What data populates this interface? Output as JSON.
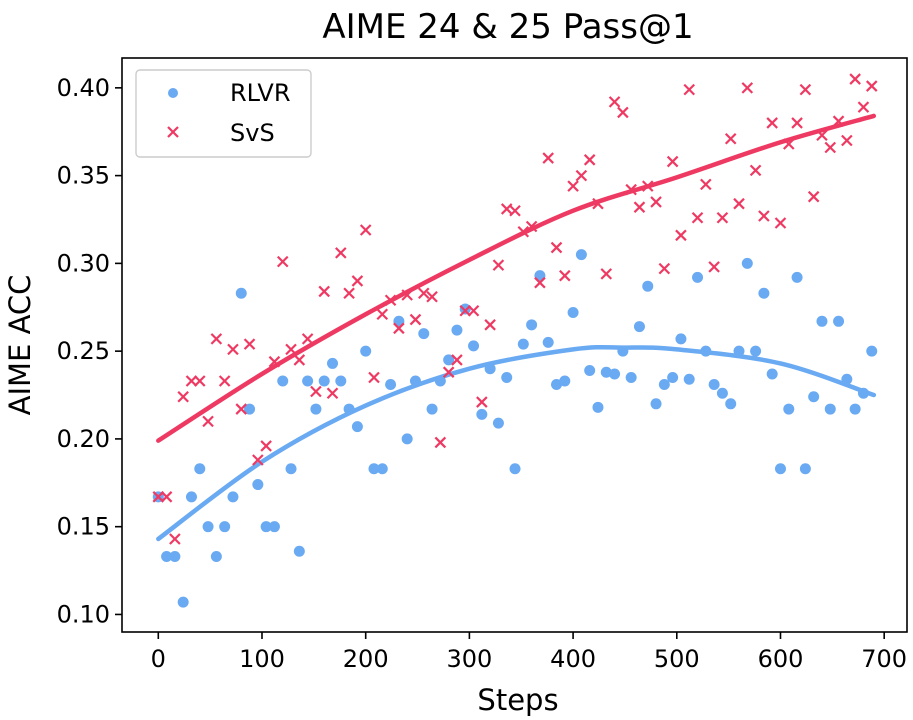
{
  "chart_data": {
    "type": "scatter",
    "title": "AIME 24 & 25 Pass@1",
    "xlabel": "Steps",
    "ylabel": "AIME ACC",
    "xlim": [
      -35,
      722
    ],
    "ylim": [
      0.09,
      0.417
    ],
    "xticks": [
      0,
      100,
      200,
      300,
      400,
      500,
      600,
      700
    ],
    "yticks": [
      0.1,
      0.15,
      0.2,
      0.25,
      0.3,
      0.35,
      0.4
    ],
    "xtick_labels": [
      "0",
      "100",
      "200",
      "300",
      "400",
      "500",
      "600",
      "700"
    ],
    "ytick_labels": [
      "0.10",
      "0.15",
      "0.20",
      "0.25",
      "0.30",
      "0.35",
      "0.40"
    ],
    "grid": false,
    "legend_position": "top-left",
    "series": [
      {
        "name": "RLVR",
        "marker": "circle",
        "color": "#6aaaf2",
        "x": [
          0,
          8,
          16,
          24,
          32,
          40,
          48,
          56,
          64,
          72,
          80,
          88,
          96,
          104,
          112,
          120,
          128,
          136,
          144,
          152,
          160,
          168,
          176,
          184,
          192,
          200,
          208,
          216,
          224,
          232,
          240,
          248,
          256,
          264,
          272,
          280,
          288,
          296,
          304,
          312,
          320,
          328,
          336,
          344,
          352,
          360,
          368,
          376,
          384,
          392,
          400,
          408,
          416,
          424,
          432,
          440,
          448,
          456,
          464,
          472,
          480,
          488,
          496,
          504,
          512,
          520,
          528,
          536,
          544,
          552,
          560,
          568,
          576,
          584,
          592,
          600,
          608,
          616,
          624,
          632,
          640,
          648,
          656,
          664,
          672,
          680,
          688
        ],
        "y": [
          0.167,
          0.133,
          0.133,
          0.107,
          0.167,
          0.183,
          0.15,
          0.133,
          0.15,
          0.167,
          0.283,
          0.217,
          0.174,
          0.15,
          0.15,
          0.233,
          0.183,
          0.136,
          0.233,
          0.217,
          0.233,
          0.243,
          0.233,
          0.217,
          0.207,
          0.25,
          0.183,
          0.183,
          0.231,
          0.267,
          0.2,
          0.233,
          0.26,
          0.217,
          0.233,
          0.245,
          0.262,
          0.274,
          0.253,
          0.214,
          0.24,
          0.209,
          0.235,
          0.183,
          0.254,
          0.265,
          0.293,
          0.255,
          0.231,
          0.233,
          0.272,
          0.305,
          0.239,
          0.218,
          0.238,
          0.237,
          0.25,
          0.235,
          0.264,
          0.287,
          0.22,
          0.231,
          0.235,
          0.257,
          0.234,
          0.292,
          0.25,
          0.231,
          0.226,
          0.22,
          0.25,
          0.3,
          0.25,
          0.283,
          0.237,
          0.183,
          0.217,
          0.292,
          0.183,
          0.224,
          0.267,
          0.217,
          0.267,
          0.234,
          0.217,
          0.226,
          0.25
        ]
      },
      {
        "name": "SvS",
        "marker": "x",
        "color": "#ee3a63",
        "x": [
          0,
          8,
          16,
          24,
          32,
          40,
          48,
          56,
          64,
          72,
          80,
          88,
          96,
          104,
          112,
          120,
          128,
          136,
          144,
          152,
          160,
          168,
          176,
          184,
          192,
          200,
          208,
          216,
          224,
          232,
          240,
          248,
          256,
          264,
          272,
          280,
          288,
          296,
          304,
          312,
          320,
          328,
          336,
          344,
          352,
          360,
          368,
          376,
          384,
          392,
          400,
          408,
          416,
          424,
          432,
          440,
          448,
          456,
          464,
          472,
          480,
          488,
          496,
          504,
          512,
          520,
          528,
          536,
          544,
          552,
          560,
          568,
          576,
          584,
          592,
          600,
          608,
          616,
          624,
          632,
          640,
          648,
          656,
          664,
          672,
          680,
          688
        ],
        "y": [
          0.167,
          0.167,
          0.143,
          0.224,
          0.233,
          0.233,
          0.21,
          0.257,
          0.233,
          0.251,
          0.217,
          0.254,
          0.188,
          0.196,
          0.244,
          0.301,
          0.251,
          0.245,
          0.257,
          0.227,
          0.284,
          0.226,
          0.306,
          0.283,
          0.29,
          0.319,
          0.235,
          0.271,
          0.279,
          0.263,
          0.282,
          0.268,
          0.283,
          0.281,
          0.198,
          0.238,
          0.245,
          0.273,
          0.273,
          0.221,
          0.265,
          0.299,
          0.331,
          0.33,
          0.318,
          0.321,
          0.289,
          0.36,
          0.309,
          0.293,
          0.344,
          0.35,
          0.359,
          0.334,
          0.294,
          0.392,
          0.386,
          0.342,
          0.332,
          0.344,
          0.335,
          0.297,
          0.358,
          0.316,
          0.399,
          0.326,
          0.345,
          0.298,
          0.326,
          0.371,
          0.334,
          0.4,
          0.353,
          0.327,
          0.38,
          0.323,
          0.368,
          0.38,
          0.399,
          0.338,
          0.373,
          0.366,
          0.381,
          0.37,
          0.405,
          0.389,
          0.401
        ]
      }
    ],
    "trend_lines": [
      {
        "series": "RLVR",
        "color": "#6aaaf2",
        "x": [
          0,
          100,
          200,
          300,
          400,
          450,
          500,
          600,
          690
        ],
        "y": [
          0.143,
          0.187,
          0.219,
          0.24,
          0.251,
          0.252,
          0.251,
          0.243,
          0.225
        ]
      },
      {
        "series": "SvS",
        "color": "#ee3a63",
        "x": [
          0,
          100,
          200,
          300,
          400,
          500,
          600,
          690
        ],
        "y": [
          0.199,
          0.237,
          0.271,
          0.302,
          0.33,
          0.349,
          0.369,
          0.384
        ]
      }
    ]
  }
}
